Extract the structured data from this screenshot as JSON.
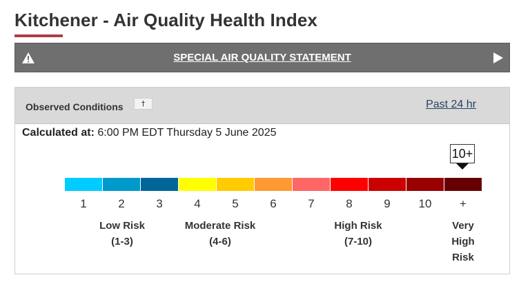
{
  "page": {
    "title": "Kitchener - Air Quality Health Index",
    "accent_color": "#af3c43"
  },
  "alert": {
    "label": "SPECIAL AIR QUALITY STATEMENT",
    "icon": "warning-triangle-icon",
    "arrow_icon": "play-arrow-icon"
  },
  "observed": {
    "heading": "Observed Conditions",
    "info_icon": "dagger-icon",
    "info_glyph": "†",
    "past_link": "Past 24 hr",
    "calculated_label": "Calculated at:",
    "calculated_value": "6:00 PM EDT Thursday 5 June 2025",
    "current_value": "10+"
  },
  "scale": {
    "labels": [
      "1",
      "2",
      "3",
      "4",
      "5",
      "6",
      "7",
      "8",
      "9",
      "10",
      "+"
    ],
    "colors": [
      "#00ccff",
      "#0099cc",
      "#006699",
      "#ffff00",
      "#ffcc00",
      "#ff9933",
      "#ff6666",
      "#ff0000",
      "#cc0000",
      "#990000",
      "#660000"
    ]
  },
  "risk_categories": [
    {
      "name": "Low Risk",
      "range": "(1-3)"
    },
    {
      "name": "Moderate Risk",
      "range": "(4-6)"
    },
    {
      "name": "High Risk",
      "range": "(7-10)"
    },
    {
      "name": "Very High Risk"
    }
  ]
}
